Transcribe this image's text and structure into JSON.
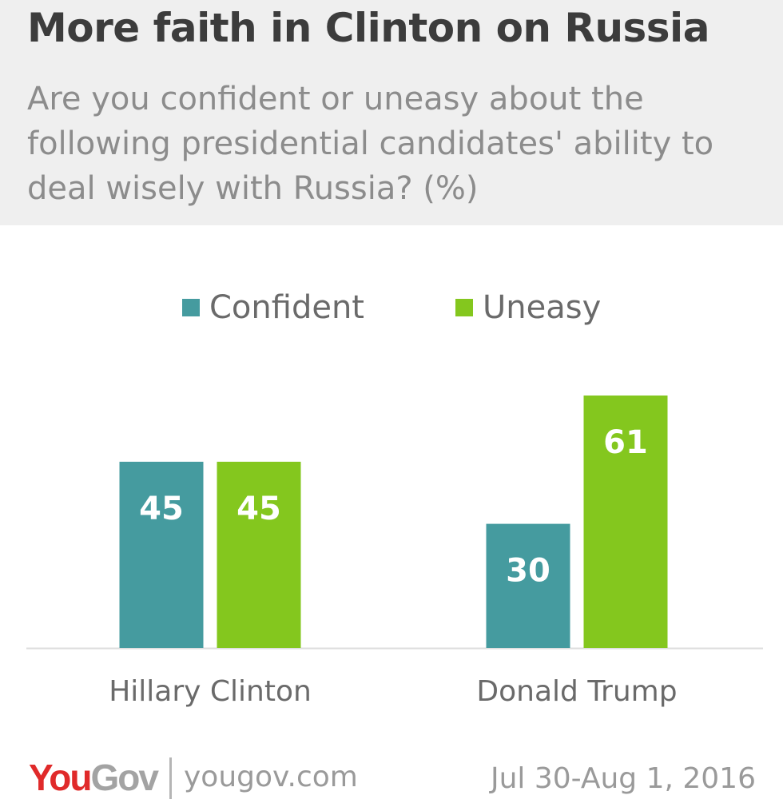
{
  "header": {
    "title": "More faith in Clinton on Russia",
    "subtitle": "Are you confident or uneasy about the following presidential candidates' ability to deal wisely with Russia? (%)"
  },
  "chart_data": {
    "type": "bar",
    "categories": [
      "Hillary Clinton",
      "Donald Trump"
    ],
    "series": [
      {
        "name": "Confident",
        "color": "#459b9f",
        "values": [
          45,
          30
        ]
      },
      {
        "name": "Uneasy",
        "color": "#84c71e",
        "values": [
          45,
          61
        ]
      }
    ],
    "legend": "top-center",
    "grid": false,
    "ylim": [
      0,
      61
    ]
  },
  "footer": {
    "logo_you": "You",
    "logo_gov": "Gov",
    "site": "yougov.com",
    "date": "Jul 30-Aug 1, 2016"
  }
}
